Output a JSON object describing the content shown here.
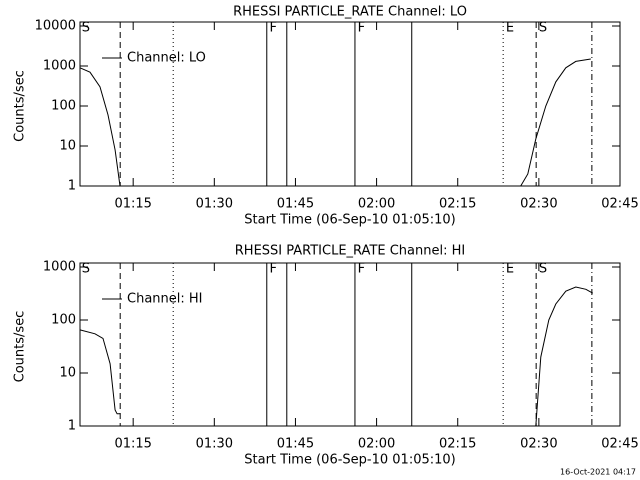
{
  "chart_data": [
    {
      "type": "line",
      "title": "RHESSI PARTICLE_RATE Channel: LO",
      "x_label": "Start Time (06-Sep-10 01:05:10)",
      "y_label": "Counts/sec",
      "log_y": true,
      "legend": "upper left",
      "xlim": [
        65.17,
        165
      ],
      "xticks": [
        {
          "value": 75,
          "label": "01:15"
        },
        {
          "value": 90,
          "label": "01:30"
        },
        {
          "value": 105,
          "label": "01:45"
        },
        {
          "value": 120,
          "label": "02:00"
        },
        {
          "value": 135,
          "label": "02:15"
        },
        {
          "value": 150,
          "label": "02:30"
        },
        {
          "value": 165,
          "label": "02:45"
        }
      ],
      "ylim": [
        1,
        10000
      ],
      "yticks": [
        1,
        10,
        100,
        1000,
        10000
      ],
      "x": [
        65.17,
        67.02,
        68.87,
        70.35,
        71.65,
        72.57,
        null,
        146.65,
        147.95,
        149.43,
        151.28,
        153.13,
        154.98,
        156.83,
        159.61
      ],
      "series": [
        {
          "name": "Channel: LO",
          "color": "#000000",
          "values": [
            900,
            700,
            300,
            60,
            8,
            1,
            null,
            1,
            2,
            15,
            100,
            400,
            900,
            1300,
            1500
          ]
        }
      ],
      "markers": [
        {
          "x": 72.6,
          "style": "dashed"
        },
        {
          "x": 82.4,
          "style": "dotted"
        },
        {
          "x": 99.7,
          "style": "solid"
        },
        {
          "x": 103.4,
          "style": "solid"
        },
        {
          "x": 116.0,
          "style": "solid"
        },
        {
          "x": 126.5,
          "style": "solid"
        },
        {
          "x": 143.4,
          "style": "dotted"
        },
        {
          "x": 149.5,
          "style": "dashed"
        },
        {
          "x": 159.8,
          "style": "dashdot"
        }
      ],
      "event_labels": [
        {
          "x": 65.5,
          "label": "S"
        },
        {
          "x": 100.2,
          "label": "F"
        },
        {
          "x": 116.5,
          "label": "F"
        },
        {
          "x": 143.9,
          "label": "E"
        },
        {
          "x": 150.0,
          "label": "S"
        }
      ]
    },
    {
      "type": "line",
      "title": "RHESSI PARTICLE_RATE Channel: HI",
      "x_label": "Start Time (06-Sep-10 01:05:10)",
      "y_label": "Counts/sec",
      "log_y": true,
      "legend": "upper left",
      "xlim": [
        65.17,
        165
      ],
      "xticks": [
        {
          "value": 75,
          "label": "01:15"
        },
        {
          "value": 90,
          "label": "01:30"
        },
        {
          "value": 105,
          "label": "01:45"
        },
        {
          "value": 120,
          "label": "02:00"
        },
        {
          "value": 135,
          "label": "02:15"
        },
        {
          "value": 150,
          "label": "02:30"
        },
        {
          "value": 165,
          "label": "02:45"
        }
      ],
      "ylim": [
        1,
        1000
      ],
      "yticks": [
        1,
        10,
        100,
        1000
      ],
      "x": [
        65.17,
        67.95,
        69.43,
        70.73,
        71.65,
        72.02,
        72.57,
        null,
        149.43,
        150.35,
        151.83,
        153.13,
        154.98,
        156.83,
        158.69,
        159.98
      ],
      "series": [
        {
          "name": "Channel: HI",
          "color": "#000000",
          "values": [
            65,
            55,
            45,
            15,
            2,
            1.7,
            1.7,
            null,
            1,
            20,
            100,
            200,
            350,
            420,
            380,
            320
          ]
        }
      ],
      "markers": [
        {
          "x": 72.6,
          "style": "dashed"
        },
        {
          "x": 82.4,
          "style": "dotted"
        },
        {
          "x": 99.7,
          "style": "solid"
        },
        {
          "x": 103.4,
          "style": "solid"
        },
        {
          "x": 116.0,
          "style": "solid"
        },
        {
          "x": 126.5,
          "style": "solid"
        },
        {
          "x": 143.4,
          "style": "dotted"
        },
        {
          "x": 149.5,
          "style": "dashed"
        },
        {
          "x": 159.8,
          "style": "dashdot"
        }
      ],
      "event_labels": [
        {
          "x": 65.5,
          "label": "S"
        },
        {
          "x": 100.2,
          "label": "F"
        },
        {
          "x": 116.5,
          "label": "F"
        },
        {
          "x": 143.9,
          "label": "E"
        },
        {
          "x": 150.0,
          "label": "S"
        }
      ]
    }
  ],
  "footer": "16-Oct-2021 04:17"
}
